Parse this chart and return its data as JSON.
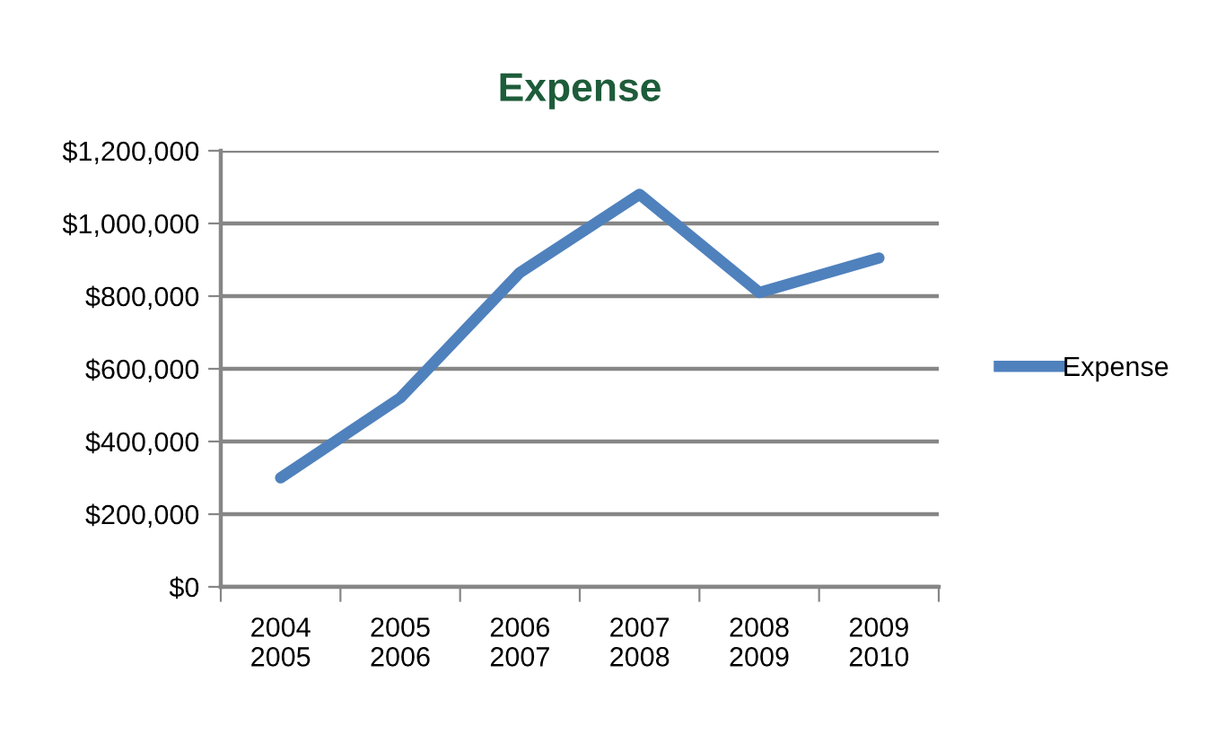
{
  "chart_data": {
    "type": "line",
    "title": "Expense",
    "categories": [
      "2004\n2005",
      "2005\n2006",
      "2006\n2007",
      "2007\n2008",
      "2008\n2009",
      "2009\n2010"
    ],
    "series": [
      {
        "name": "Expense",
        "color": "#4f81bd",
        "values": [
          300000,
          520000,
          865000,
          1080000,
          810000,
          905000
        ]
      }
    ],
    "ylim": [
      0,
      1200000
    ],
    "yticks": [
      {
        "value": 0,
        "label": "$0"
      },
      {
        "value": 200000,
        "label": "$200,000"
      },
      {
        "value": 400000,
        "label": "$400,000"
      },
      {
        "value": 600000,
        "label": "$600,000"
      },
      {
        "value": 800000,
        "label": "$800,000"
      },
      {
        "value": 1000000,
        "label": "$1,000,000"
      },
      {
        "value": 1200000,
        "label": "$1,200,000"
      }
    ],
    "grid": "y",
    "legend": "right",
    "marker": "none",
    "line_style": "solid"
  }
}
